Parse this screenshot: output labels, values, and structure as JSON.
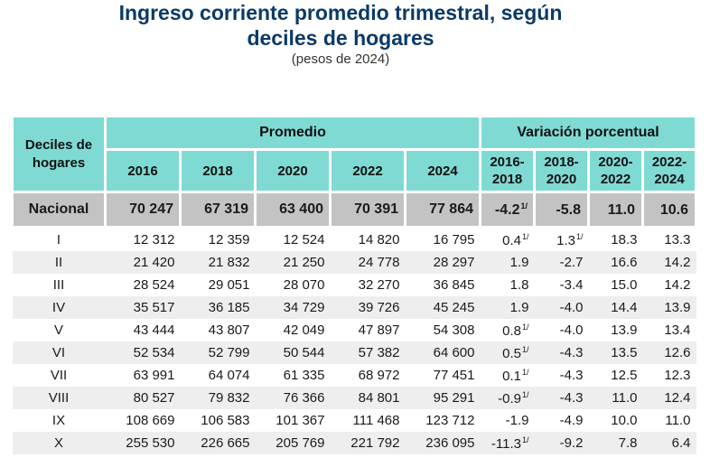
{
  "title_line1": "Ingreso corriente promedio trimestral, según",
  "title_line2": "deciles de hogares",
  "subtitle": "(pesos de 2024)",
  "header": {
    "deciles": "Deciles de hogares",
    "promedio": "Promedio",
    "variacion": "Variación porcentual",
    "years": [
      "2016",
      "2018",
      "2020",
      "2022",
      "2024"
    ],
    "periods": [
      {
        "a": "2016-",
        "b": "2018"
      },
      {
        "a": "2018-",
        "b": "2020"
      },
      {
        "a": "2020-",
        "b": "2022"
      },
      {
        "a": "2022-",
        "b": "2024"
      }
    ]
  },
  "nacional": {
    "label": "Nacional",
    "values": [
      "70 247",
      "67 319",
      "63 400",
      "70 391",
      "77 864"
    ],
    "var": [
      {
        "v": "-4.2",
        "n": "1/"
      },
      {
        "v": "-5.8",
        "n": ""
      },
      {
        "v": "11.0",
        "n": ""
      },
      {
        "v": "10.6",
        "n": ""
      }
    ]
  },
  "rows": [
    {
      "label": "I",
      "values": [
        "12 312",
        "12 359",
        "12 524",
        "14 820",
        "16 795"
      ],
      "var": [
        {
          "v": "0.4",
          "n": "1/"
        },
        {
          "v": "1.3",
          "n": "1/"
        },
        {
          "v": "18.3",
          "n": ""
        },
        {
          "v": "13.3",
          "n": ""
        }
      ]
    },
    {
      "label": "II",
      "values": [
        "21 420",
        "21 832",
        "21 250",
        "24 778",
        "28 297"
      ],
      "var": [
        {
          "v": "1.9",
          "n": ""
        },
        {
          "v": "-2.7",
          "n": ""
        },
        {
          "v": "16.6",
          "n": ""
        },
        {
          "v": "14.2",
          "n": ""
        }
      ]
    },
    {
      "label": "III",
      "values": [
        "28 524",
        "29 051",
        "28 070",
        "32 270",
        "36 845"
      ],
      "var": [
        {
          "v": "1.8",
          "n": ""
        },
        {
          "v": "-3.4",
          "n": ""
        },
        {
          "v": "15.0",
          "n": ""
        },
        {
          "v": "14.2",
          "n": ""
        }
      ]
    },
    {
      "label": "IV",
      "values": [
        "35 517",
        "36 185",
        "34 729",
        "39 726",
        "45 245"
      ],
      "var": [
        {
          "v": "1.9",
          "n": ""
        },
        {
          "v": "-4.0",
          "n": ""
        },
        {
          "v": "14.4",
          "n": ""
        },
        {
          "v": "13.9",
          "n": ""
        }
      ]
    },
    {
      "label": "V",
      "values": [
        "43 444",
        "43 807",
        "42 049",
        "47 897",
        "54 308"
      ],
      "var": [
        {
          "v": "0.8",
          "n": "1/"
        },
        {
          "v": "-4.0",
          "n": ""
        },
        {
          "v": "13.9",
          "n": ""
        },
        {
          "v": "13.4",
          "n": ""
        }
      ]
    },
    {
      "label": "VI",
      "values": [
        "52 534",
        "52 799",
        "50 544",
        "57 382",
        "64 600"
      ],
      "var": [
        {
          "v": "0.5",
          "n": "1/"
        },
        {
          "v": "-4.3",
          "n": ""
        },
        {
          "v": "13.5",
          "n": ""
        },
        {
          "v": "12.6",
          "n": ""
        }
      ]
    },
    {
      "label": "VII",
      "values": [
        "63 991",
        "64 074",
        "61 335",
        "68 972",
        "77 451"
      ],
      "var": [
        {
          "v": "0.1",
          "n": "1/"
        },
        {
          "v": "-4.3",
          "n": ""
        },
        {
          "v": "12.5",
          "n": ""
        },
        {
          "v": "12.3",
          "n": ""
        }
      ]
    },
    {
      "label": "VIII",
      "values": [
        "80 527",
        "79 832",
        "76 366",
        "84 801",
        "95 291"
      ],
      "var": [
        {
          "v": "-0.9",
          "n": "1/"
        },
        {
          "v": "-4.3",
          "n": ""
        },
        {
          "v": "11.0",
          "n": ""
        },
        {
          "v": "12.4",
          "n": ""
        }
      ]
    },
    {
      "label": "IX",
      "values": [
        "108 669",
        "106 583",
        "101 367",
        "111 468",
        "123 712"
      ],
      "var": [
        {
          "v": "-1.9",
          "n": ""
        },
        {
          "v": "-4.9",
          "n": ""
        },
        {
          "v": "10.0",
          "n": ""
        },
        {
          "v": "11.0",
          "n": ""
        }
      ]
    },
    {
      "label": "X",
      "values": [
        "255 530",
        "226 665",
        "205 769",
        "221 792",
        "236 095"
      ],
      "var": [
        {
          "v": "-11.3",
          "n": "1/"
        },
        {
          "v": "-9.2",
          "n": ""
        },
        {
          "v": "7.8",
          "n": ""
        },
        {
          "v": "6.4",
          "n": ""
        }
      ]
    }
  ]
}
